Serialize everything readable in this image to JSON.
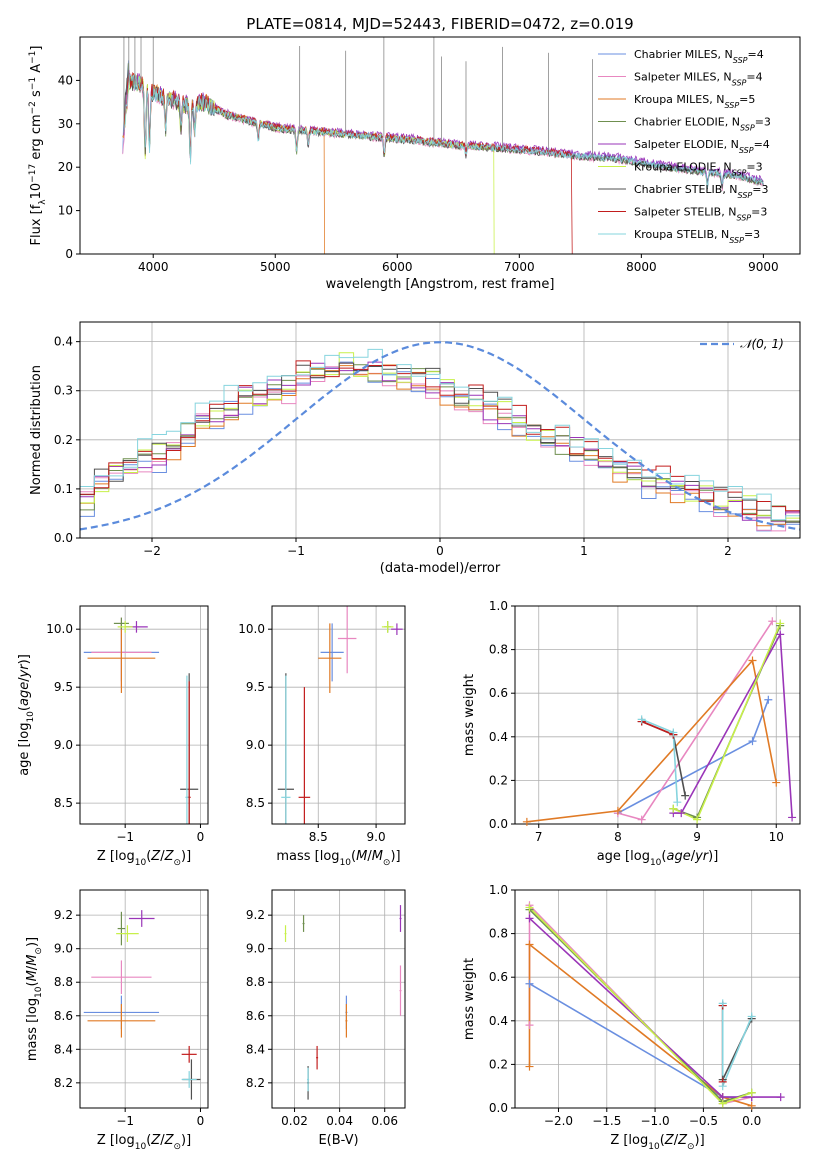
{
  "figure_title": "PLATE=0814, MJD=52443, FIBERID=0472, z=0.019",
  "colors": {
    "Chabrier MILES": "#6a8fe0",
    "Salpeter MILES": "#e887c0",
    "Kroupa MILES": "#e07a25",
    "Chabrier ELODIE": "#6f8f4f",
    "Salpeter ELODIE": "#9a35b8",
    "Kroupa ELODIE": "#c8f04a",
    "Chabrier STELIB": "#505050",
    "Salpeter STELIB": "#c21d1d",
    "Kroupa STELIB": "#86d4de",
    "gaussian": "#5b8bdc"
  },
  "chart_data": [
    {
      "id": "spectrum",
      "type": "line",
      "xlabel": "wavelength [Angstrom, rest frame]",
      "ylabel_text": "Flux [fλ10⁻¹⁷ erg cm⁻² s⁻¹ A⁻¹]",
      "xlim": [
        3400,
        9300
      ],
      "ylim": [
        0,
        50
      ],
      "xticks": [
        4000,
        5000,
        6000,
        7000,
        8000,
        9000
      ],
      "yticks": [
        0,
        10,
        20,
        30,
        40
      ],
      "grid": false,
      "legend_position": "top-right",
      "legend": [
        {
          "label": "Chabrier MILES",
          "nssp": "4"
        },
        {
          "label": "Salpeter MILES",
          "nssp": "4"
        },
        {
          "label": "Kroupa MILES",
          "nssp": "5"
        },
        {
          "label": "Chabrier ELODIE",
          "nssp": "3"
        },
        {
          "label": "Salpeter ELODIE",
          "nssp": "4"
        },
        {
          "label": "Kroupa ELODIE",
          "nssp": "3"
        },
        {
          "label": "Chabrier STELIB",
          "nssp": "3"
        },
        {
          "label": "Salpeter STELIB",
          "nssp": "3"
        },
        {
          "label": "Kroupa STELIB",
          "nssp": "3"
        }
      ],
      "continuum": {
        "x": [
          3750,
          3800,
          3900,
          4000,
          4100,
          4200,
          4300,
          4400,
          4600,
          4800,
          5000,
          5200,
          5400,
          5600,
          5800,
          6000,
          6200,
          6500,
          6800,
          7000,
          7200,
          7500,
          7800,
          8000,
          8200,
          8500,
          8800,
          9000
        ],
        "y": [
          25,
          40,
          39,
          37,
          36,
          35,
          34,
          35,
          32,
          30.5,
          29,
          28.5,
          28,
          27.5,
          27,
          26.5,
          26,
          25,
          24.5,
          24,
          23.5,
          22.5,
          22,
          21,
          20,
          19,
          18,
          16.5
        ]
      },
      "absorption_lines": [
        {
          "x": 3934,
          "depth": 15
        },
        {
          "x": 3969,
          "depth": 13
        },
        {
          "x": 4102,
          "depth": 7
        },
        {
          "x": 4227,
          "depth": 6
        },
        {
          "x": 4304,
          "depth": 12
        },
        {
          "x": 4340,
          "depth": 6
        },
        {
          "x": 4861,
          "depth": 4
        },
        {
          "x": 5175,
          "depth": 5
        },
        {
          "x": 5270,
          "depth": 3
        },
        {
          "x": 5893,
          "depth": 4
        },
        {
          "x": 6563,
          "depth": 2
        },
        {
          "x": 8542,
          "depth": 3
        },
        {
          "x": 8662,
          "depth": 3
        }
      ],
      "data_spikes": [
        3760,
        3800,
        3850,
        3900,
        4000,
        5200,
        5577,
        5890,
        6300,
        6363,
        6563,
        6863,
        7240,
        7600
      ],
      "drops": [
        {
          "x": 5400,
          "series": "Kroupa MILES"
        },
        {
          "x": 6790,
          "series": "Kroupa ELODIE"
        },
        {
          "x": 7430,
          "series": "Salpeter STELIB"
        }
      ]
    },
    {
      "id": "residuals",
      "type": "step",
      "xlabel": "(data-model)/error",
      "ylabel": "Normed distribution",
      "xlim": [
        -2.5,
        2.5
      ],
      "ylim": [
        0,
        0.44
      ],
      "xticks": [
        -2,
        -1,
        0,
        1,
        2
      ],
      "yticks": [
        0.0,
        0.1,
        0.2,
        0.3,
        0.4
      ],
      "grid": true,
      "legend_position": "top-right",
      "legend": [
        {
          "label": "𝒩(0, 1)"
        }
      ],
      "bin_edges_range": [
        -2.5,
        2.5
      ],
      "n_bins": 50,
      "base_shape": [
        0.085,
        0.11,
        0.13,
        0.15,
        0.165,
        0.17,
        0.19,
        0.215,
        0.24,
        0.255,
        0.27,
        0.285,
        0.29,
        0.3,
        0.31,
        0.325,
        0.335,
        0.34,
        0.35,
        0.35,
        0.345,
        0.34,
        0.335,
        0.33,
        0.32,
        0.3,
        0.29,
        0.28,
        0.265,
        0.25,
        0.235,
        0.22,
        0.21,
        0.195,
        0.18,
        0.165,
        0.155,
        0.145,
        0.135,
        0.12,
        0.11,
        0.1,
        0.09,
        0.08,
        0.072,
        0.065,
        0.06,
        0.05,
        0.045,
        0.04
      ]
    },
    {
      "id": "age_vs_Z",
      "type": "errorbar",
      "xlabel": "Z [log₁₀(Z/Z⊙)]",
      "ylabel": "age  [log₁₀(age/yr)]",
      "xlim": [
        -1.6,
        0.1
      ],
      "ylim": [
        8.32,
        10.2
      ],
      "xticks": [
        -1,
        0
      ],
      "yticks": [
        8.5,
        9.0,
        9.5,
        10.0
      ],
      "grid": true,
      "points": [
        {
          "series": "Chabrier MILES",
          "x": -1.05,
          "xerr": 0.5,
          "y": 9.8,
          "yerr": 0.25
        },
        {
          "series": "Salpeter MILES",
          "x": -1.05,
          "xerr": 0.4,
          "y": 9.8,
          "yerr": 0.3
        },
        {
          "series": "Kroupa MILES",
          "x": -1.05,
          "xerr": 0.45,
          "y": 9.75,
          "yerr": 0.3
        },
        {
          "series": "Chabrier ELODIE",
          "x": -1.05,
          "xerr": 0.1,
          "y": 10.05,
          "yerr": 0.05
        },
        {
          "series": "Salpeter ELODIE",
          "x": -0.85,
          "xerr": 0.15,
          "y": 10.02,
          "yerr": 0.05
        },
        {
          "series": "Kroupa ELODIE",
          "x": -1.0,
          "xerr": 0.1,
          "y": 10.02,
          "yerr": 0.05
        },
        {
          "series": "Chabrier STELIB",
          "x": -0.15,
          "xerr": 0.12,
          "y": 8.62,
          "yerr": 1.0
        },
        {
          "series": "Salpeter STELIB",
          "x": -0.15,
          "xerr": 0.02,
          "y": 8.55,
          "yerr": 1.0
        },
        {
          "series": "Kroupa STELIB",
          "x": -0.18,
          "xerr": 0.02,
          "y": 8.55,
          "yerr": 1.05
        }
      ]
    },
    {
      "id": "age_vs_mass",
      "type": "errorbar",
      "xlabel": "mass [log₁₀(M/M⊙)]",
      "xlim": [
        8.1,
        9.25
      ],
      "ylim": [
        8.32,
        10.2
      ],
      "xticks": [
        8.5,
        9.0
      ],
      "yticks": [
        8.5,
        9.0,
        9.5,
        10.0
      ],
      "grid": true,
      "points": [
        {
          "series": "Chabrier MILES",
          "x": 8.62,
          "xerr": 0.1,
          "y": 9.8,
          "yerr": 0.25
        },
        {
          "series": "Salpeter MILES",
          "x": 8.75,
          "xerr": 0.08,
          "y": 9.92,
          "yerr": 0.3
        },
        {
          "series": "Kroupa MILES",
          "x": 8.6,
          "xerr": 0.1,
          "y": 9.75,
          "yerr": 0.3
        },
        {
          "series": "Chabrier ELODIE",
          "x": 9.1,
          "xerr": 0.03,
          "y": 10.02,
          "yerr": 0.05
        },
        {
          "series": "Salpeter ELODIE",
          "x": 9.18,
          "xerr": 0.05,
          "y": 10.0,
          "yerr": 0.05
        },
        {
          "series": "Kroupa ELODIE",
          "x": 9.1,
          "xerr": 0.05,
          "y": 10.02,
          "yerr": 0.05
        },
        {
          "series": "Chabrier STELIB",
          "x": 8.22,
          "xerr": 0.07,
          "y": 8.62,
          "yerr": 1.0
        },
        {
          "series": "Salpeter STELIB",
          "x": 8.38,
          "xerr": 0.05,
          "y": 8.55,
          "yerr": 0.95
        },
        {
          "series": "Kroupa STELIB",
          "x": 8.22,
          "xerr": 0.04,
          "y": 8.55,
          "yerr": 1.05
        }
      ]
    },
    {
      "id": "mass_weight_vs_age",
      "type": "line",
      "xlabel": "age  [log₁₀(age/yr)]",
      "ylabel": "mass weight",
      "xlim": [
        6.7,
        10.3
      ],
      "ylim": [
        0,
        1.0
      ],
      "xticks": [
        7,
        8,
        9,
        10
      ],
      "yticks": [
        0.0,
        0.2,
        0.4,
        0.6,
        0.8,
        1.0
      ],
      "grid": true,
      "series": [
        {
          "name": "Chabrier MILES",
          "x": [
            8.0,
            9.7,
            9.9
          ],
          "y": [
            0.05,
            0.38,
            0.57
          ]
        },
        {
          "name": "Salpeter MILES",
          "x": [
            8.0,
            8.3,
            9.95
          ],
          "y": [
            0.05,
            0.02,
            0.93
          ]
        },
        {
          "name": "Kroupa MILES",
          "x": [
            6.85,
            8.0,
            9.7,
            10.0
          ],
          "y": [
            0.01,
            0.06,
            0.75,
            0.19
          ]
        },
        {
          "name": "Chabrier ELODIE",
          "x": [
            8.7,
            9.0,
            10.05
          ],
          "y": [
            0.07,
            0.03,
            0.91
          ]
        },
        {
          "name": "Salpeter ELODIE",
          "x": [
            8.7,
            8.8,
            10.05,
            10.2
          ],
          "y": [
            0.05,
            0.05,
            0.87,
            0.03
          ]
        },
        {
          "name": "Kroupa ELODIE",
          "x": [
            8.7,
            9.0,
            10.05
          ],
          "y": [
            0.07,
            0.02,
            0.92
          ]
        },
        {
          "name": "Chabrier STELIB",
          "x": [
            8.3,
            8.7,
            8.85
          ],
          "y": [
            0.47,
            0.41,
            0.13
          ]
        },
        {
          "name": "Salpeter STELIB",
          "x": [
            8.3,
            8.7
          ],
          "y": [
            0.47,
            0.41
          ]
        },
        {
          "name": "Kroupa STELIB",
          "x": [
            8.3,
            8.7,
            8.75
          ],
          "y": [
            0.48,
            0.42,
            0.1
          ]
        }
      ]
    },
    {
      "id": "mass_vs_Z",
      "type": "errorbar",
      "xlabel": "Z [log₁₀(Z/Z⊙)]",
      "ylabel": "mass [log₁₀(M/M⊙)]",
      "xlim": [
        -1.6,
        0.1
      ],
      "ylim": [
        8.05,
        9.35
      ],
      "xticks": [
        -1,
        0
      ],
      "yticks": [
        8.2,
        8.4,
        8.6,
        8.8,
        9.0,
        9.2
      ],
      "grid": true,
      "points": [
        {
          "series": "Chabrier MILES",
          "x": -1.05,
          "xerr": 0.5,
          "y": 8.62,
          "yerr": 0.1
        },
        {
          "series": "Salpeter MILES",
          "x": -1.05,
          "xerr": 0.4,
          "y": 8.83,
          "yerr": 0.1
        },
        {
          "series": "Kroupa MILES",
          "x": -1.05,
          "xerr": 0.45,
          "y": 8.57,
          "yerr": 0.1
        },
        {
          "series": "Chabrier ELODIE",
          "x": -1.05,
          "xerr": 0.05,
          "y": 9.12,
          "yerr": 0.1
        },
        {
          "series": "Salpeter ELODIE",
          "x": -0.78,
          "xerr": 0.17,
          "y": 9.18,
          "yerr": 0.05
        },
        {
          "series": "Kroupa ELODIE",
          "x": -0.97,
          "xerr": 0.15,
          "y": 9.09,
          "yerr": 0.05
        },
        {
          "series": "Chabrier STELIB",
          "x": -0.12,
          "xerr": 0.12,
          "y": 8.22,
          "yerr": 0.12
        },
        {
          "series": "Salpeter STELIB",
          "x": -0.15,
          "xerr": 0.1,
          "y": 8.37,
          "yerr": 0.05
        },
        {
          "series": "Kroupa STELIB",
          "x": -0.15,
          "xerr": 0.1,
          "y": 8.22,
          "yerr": 0.05
        }
      ]
    },
    {
      "id": "mass_vs_EBV",
      "type": "errorbar",
      "xlabel": "E(B-V)",
      "xlim": [
        0.01,
        0.069
      ],
      "ylim": [
        8.05,
        9.35
      ],
      "xticks": [
        0.02,
        0.04,
        0.06
      ],
      "yticks": [
        8.2,
        8.4,
        8.6,
        8.8,
        9.0,
        9.2
      ],
      "grid": true,
      "points": [
        {
          "series": "Chabrier MILES",
          "x": 0.043,
          "xerr": 0,
          "y": 8.62,
          "yerr": 0.1
        },
        {
          "series": "Salpeter MILES",
          "x": 0.067,
          "xerr": 0,
          "y": 8.75,
          "yerr": 0.15
        },
        {
          "series": "Kroupa MILES",
          "x": 0.043,
          "xerr": 0,
          "y": 8.57,
          "yerr": 0.1
        },
        {
          "series": "Chabrier ELODIE",
          "x": 0.024,
          "xerr": 0,
          "y": 9.15,
          "yerr": 0.05
        },
        {
          "series": "Salpeter ELODIE",
          "x": 0.067,
          "xerr": 0,
          "y": 9.18,
          "yerr": 0.08
        },
        {
          "series": "Kroupa ELODIE",
          "x": 0.016,
          "xerr": 0,
          "y": 9.09,
          "yerr": 0.05
        },
        {
          "series": "Chabrier STELIB",
          "x": 0.026,
          "xerr": 0,
          "y": 8.2,
          "yerr": 0.1
        },
        {
          "series": "Salpeter STELIB",
          "x": 0.03,
          "xerr": 0,
          "y": 8.35,
          "yerr": 0.07
        },
        {
          "series": "Kroupa STELIB",
          "x": 0.026,
          "xerr": 0,
          "y": 8.22,
          "yerr": 0.07
        }
      ]
    },
    {
      "id": "mass_weight_vs_Z",
      "type": "line",
      "xlabel": "Z [log₁₀(Z/Z⊙)]",
      "ylabel": "mass weight",
      "xlim": [
        -2.45,
        0.5
      ],
      "ylim": [
        0,
        1.0
      ],
      "xticks": [
        -2.0,
        -1.5,
        -1.0,
        -0.5,
        0.0
      ],
      "yticks": [
        0.0,
        0.2,
        0.4,
        0.6,
        0.8,
        1.0
      ],
      "grid": true,
      "series": [
        {
          "name": "Chabrier MILES",
          "x": [
            -2.3,
            -0.3,
            0.0
          ],
          "y": [
            0.57,
            0.05,
            0.05
          ]
        },
        {
          "name": "Salpeter MILES",
          "x": [
            -2.3,
            -2.3,
            -0.3,
            0.0
          ],
          "y": [
            0.38,
            0.93,
            0.02,
            0.05
          ]
        },
        {
          "name": "Kroupa MILES",
          "x": [
            -2.3,
            -2.3,
            -0.3,
            0.0
          ],
          "y": [
            0.19,
            0.75,
            0.05,
            0.01
          ]
        },
        {
          "name": "Chabrier ELODIE",
          "x": [
            -2.3,
            -0.3,
            0.0
          ],
          "y": [
            0.91,
            0.03,
            0.07
          ]
        },
        {
          "name": "Salpeter ELODIE",
          "x": [
            -2.3,
            -0.3,
            0.0,
            0.3
          ],
          "y": [
            0.87,
            0.05,
            0.05,
            0.05
          ]
        },
        {
          "name": "Kroupa ELODIE",
          "x": [
            -2.3,
            -0.3,
            0.0
          ],
          "y": [
            0.92,
            0.02,
            0.07
          ]
        },
        {
          "name": "Chabrier STELIB",
          "x": [
            -0.3,
            -0.3,
            0.0
          ],
          "y": [
            0.47,
            0.13,
            0.41
          ]
        },
        {
          "name": "Salpeter STELIB",
          "x": [
            -0.3,
            -0.3
          ],
          "y": [
            0.47,
            0.12
          ]
        },
        {
          "name": "Kroupa STELIB",
          "x": [
            -0.3,
            -0.3,
            0.0
          ],
          "y": [
            0.48,
            0.1,
            0.42
          ]
        }
      ]
    }
  ]
}
